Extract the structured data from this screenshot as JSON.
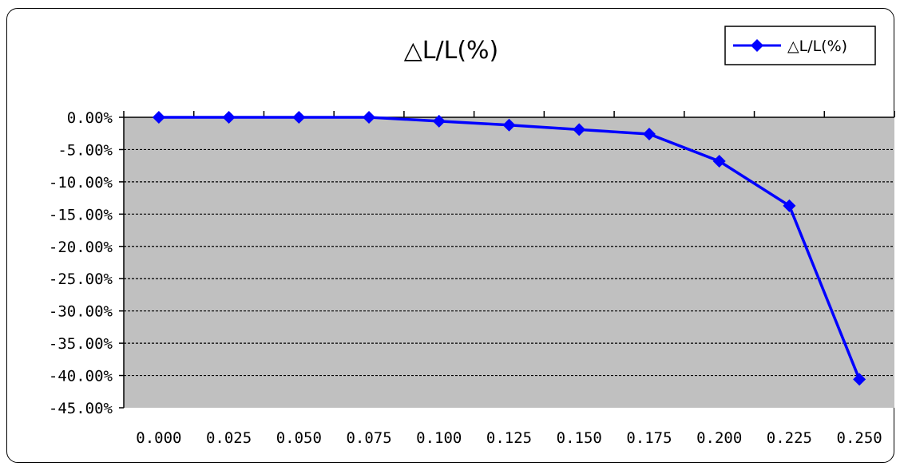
{
  "chart_data": {
    "type": "line",
    "title": "△L/L(%)",
    "xlabel": "",
    "ylabel": "",
    "x": [
      "0.000",
      "0.025",
      "0.050",
      "0.075",
      "0.100",
      "0.125",
      "0.150",
      "0.175",
      "0.200",
      "0.225",
      "0.250"
    ],
    "series": [
      {
        "name": "△L/L(%)",
        "values": [
          0.0,
          0.0,
          0.0,
          0.0,
          -0.6,
          -1.2,
          -1.9,
          -2.6,
          -6.8,
          -13.7,
          -40.6
        ]
      }
    ],
    "ylim": [
      -45,
      0
    ],
    "y_ticks": [
      0,
      -5,
      -10,
      -15,
      -20,
      -25,
      -30,
      -35,
      -40,
      -45
    ],
    "y_tick_labels": [
      "0.00%",
      "-5.00%",
      "-10.00%",
      "-15.00%",
      "-20.00%",
      "-25.00%",
      "-30.00%",
      "-35.00%",
      "-40.00%",
      "-45.00%"
    ],
    "grid": true,
    "legend_position": "top-right",
    "colors": {
      "series": "#0000ff",
      "plot_background": "#c0c0c0",
      "gridline": "#000000"
    }
  }
}
